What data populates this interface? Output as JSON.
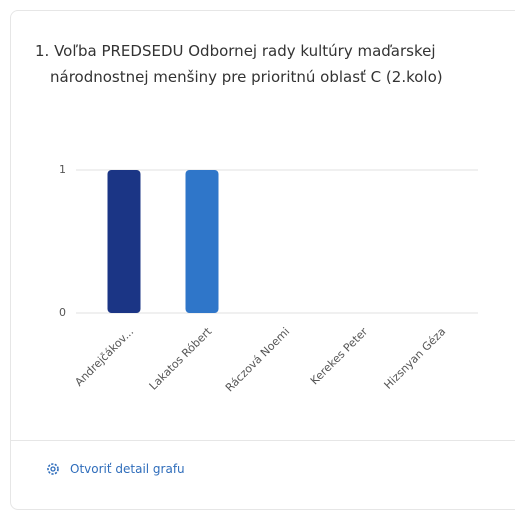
{
  "chart_data": {
    "type": "bar",
    "title": "1. Voľba PREDSEDU Odbornej rady kultúry maďarskej národnostnej menšiny pre prioritnú oblasť C (2.kolo)",
    "categories": [
      "Andrejčákov...",
      "Lakatos Róbert",
      "Ráczová Noemi",
      "Kerekes Peter",
      "Hizsnyan Géza"
    ],
    "values": [
      1,
      1,
      0,
      0,
      0
    ],
    "colors": [
      "#1b3585",
      "#2f76c9",
      "#2f76c9",
      "#2f76c9",
      "#2f76c9"
    ],
    "ylim": [
      0,
      1
    ],
    "yticks": [
      0,
      1
    ],
    "grid": true
  },
  "footer": {
    "link": "Otvoriť detail grafu"
  }
}
